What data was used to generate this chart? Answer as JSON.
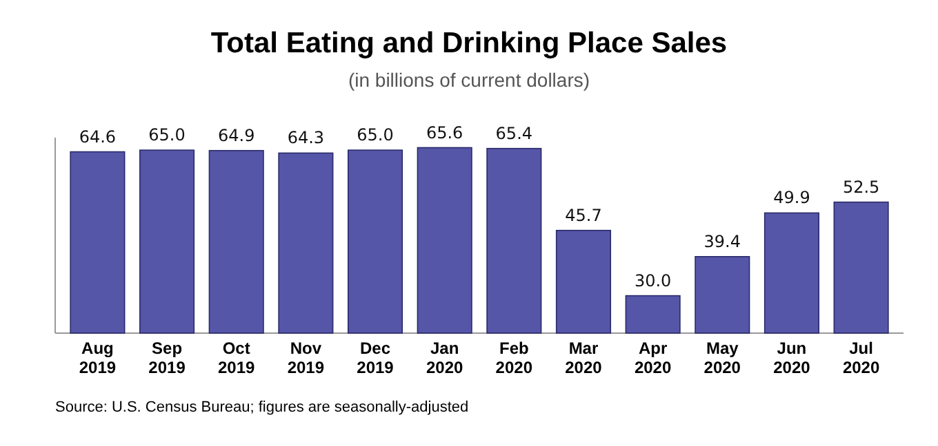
{
  "chart_data": {
    "type": "bar",
    "title": "Total Eating and Drinking Place Sales",
    "subtitle": "(in billions of current dollars)",
    "categories": [
      "Aug 2019",
      "Sep 2019",
      "Oct 2019",
      "Nov 2019",
      "Dec 2019",
      "Jan 2020",
      "Feb 2020",
      "Mar 2020",
      "Apr 2020",
      "May 2020",
      "Jun 2020",
      "Jul 2020"
    ],
    "values": [
      64.6,
      65.0,
      64.9,
      64.3,
      65.0,
      65.6,
      65.4,
      45.7,
      30.0,
      39.4,
      49.9,
      52.5
    ],
    "value_labels": [
      "64.6",
      "65.0",
      "64.9",
      "64.3",
      "65.0",
      "65.6",
      "65.4",
      "45.7",
      "30.0",
      "39.4",
      "49.9",
      "52.5"
    ],
    "color": "#5656a8",
    "ylim": [
      21,
      68
    ],
    "tick_labels": "x",
    "annotations": [
      "Source: U.S. Census Bureau; figures are seasonally-adjusted"
    ]
  }
}
